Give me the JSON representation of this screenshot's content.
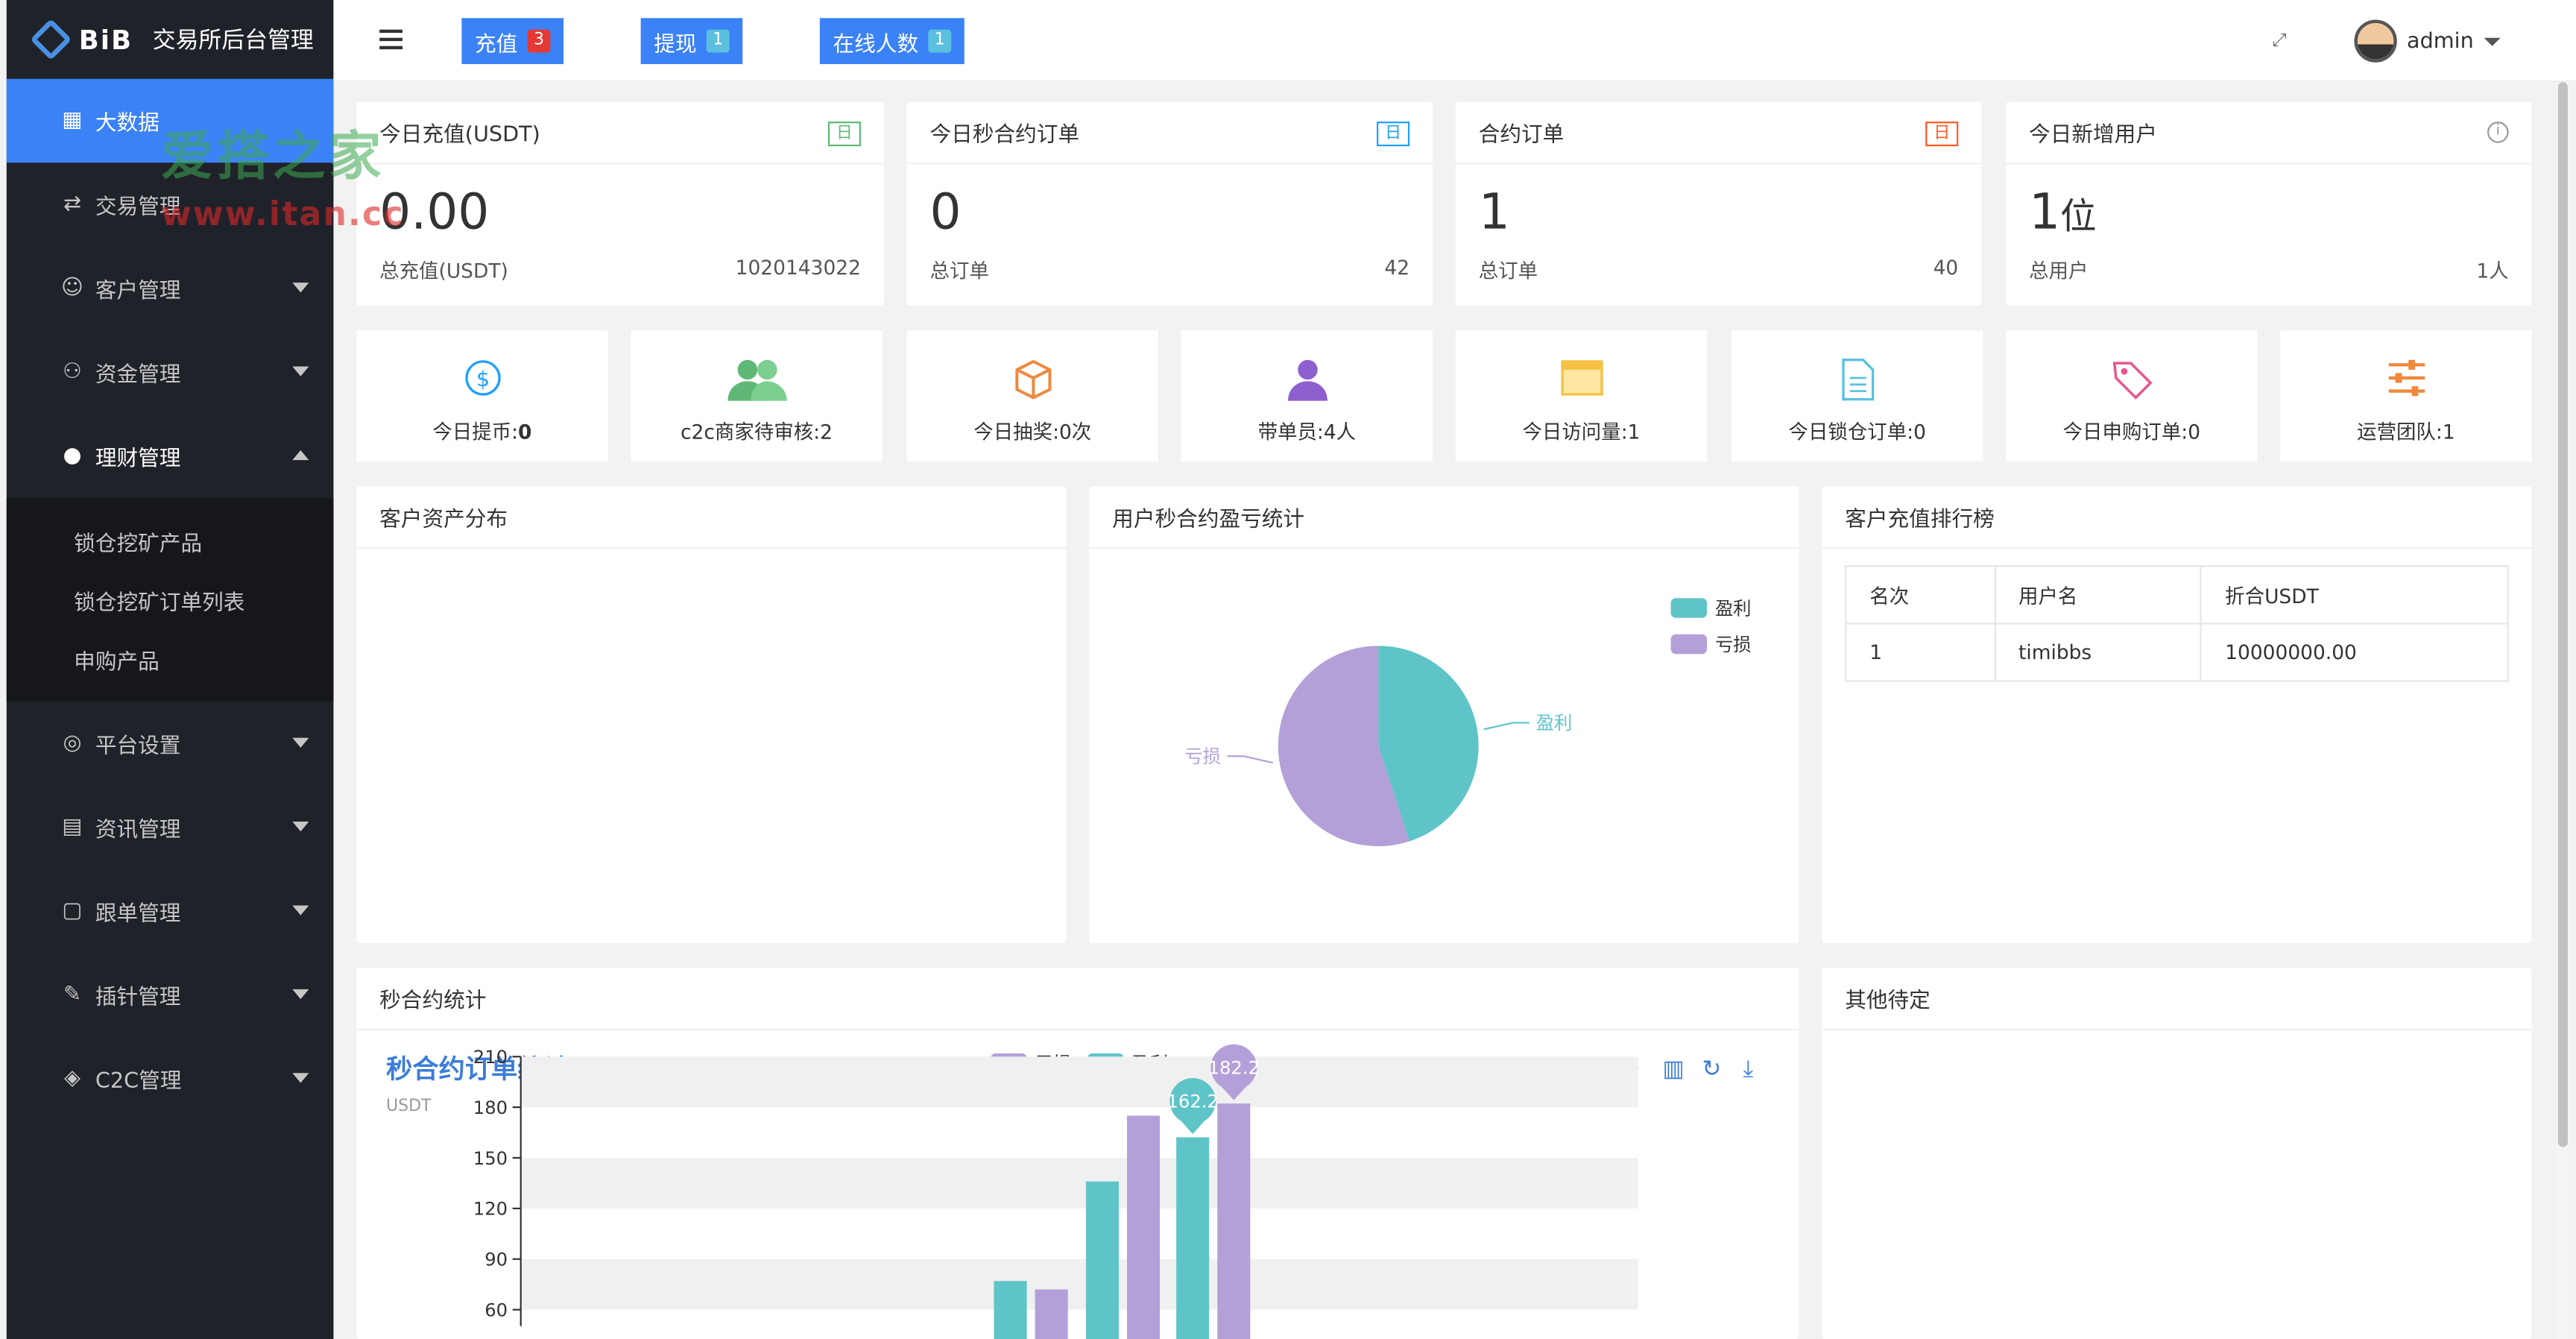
{
  "sidebar": {
    "brand": "BiB",
    "title": "交易所后台管理",
    "menu": [
      {
        "label": "大数据",
        "icon": "chart-icon"
      },
      {
        "label": "交易管理",
        "icon": "exchange-icon"
      },
      {
        "label": "客户管理",
        "icon": "users-icon"
      },
      {
        "label": "资金管理",
        "icon": "wallet-icon"
      },
      {
        "label": "理财管理",
        "icon": "piggy-bank-icon"
      },
      {
        "label": "平台设置",
        "icon": "settings-icon"
      },
      {
        "label": "资讯管理",
        "icon": "news-icon"
      },
      {
        "label": "跟单管理",
        "icon": "copy-order-icon"
      },
      {
        "label": "插针管理",
        "icon": "pin-icon"
      },
      {
        "label": "C2C管理",
        "icon": "c2c-icon"
      }
    ],
    "submenu": [
      "锁仓挖矿产品",
      "锁仓挖矿订单列表",
      "申购产品"
    ]
  },
  "header": {
    "buttons": [
      {
        "label": "充值",
        "badge": "3",
        "badge_color": "#e53935"
      },
      {
        "label": "提现",
        "badge": "1",
        "badge_color": "#5bc0de"
      },
      {
        "label": "在线人数",
        "badge": "1",
        "badge_color": "#5bc0de"
      }
    ],
    "user": "admin"
  },
  "watermark": {
    "line1": "爱搭之家",
    "line2": "www.itan.cc"
  },
  "stats": [
    {
      "title": "今日充值(USDT)",
      "tag": "日",
      "value": "0.00",
      "foot_label": "总充值(USDT)",
      "foot_value": "1020143022"
    },
    {
      "title": "今日秒合约订单",
      "tag": "日",
      "value": "0",
      "foot_label": "总订单",
      "foot_value": "42"
    },
    {
      "title": "合约订单",
      "tag": "日",
      "value": "1",
      "foot_label": "总订单",
      "foot_value": "40"
    },
    {
      "title": "今日新增用户",
      "tag": "i",
      "value": "1",
      "value_unit": "位",
      "foot_label": "总用户",
      "foot_value": "1人"
    }
  ],
  "mini_cards": [
    {
      "label": "今日提币:",
      "value": "0",
      "icon": "dollar-circle-icon",
      "color": "#1e9fff"
    },
    {
      "label": "c2c商家待审核:2",
      "icon": "group-icon",
      "color": "#5fb878"
    },
    {
      "label": "今日抽奖:0次",
      "icon": "cube-icon",
      "color": "#f0883e"
    },
    {
      "label": "带单员:4人",
      "icon": "person-icon",
      "color": "#8e5fcf"
    },
    {
      "label": "今日访问量:1",
      "icon": "window-icon",
      "color": "#f5c242"
    },
    {
      "label": "今日锁仓订单:0",
      "icon": "document-icon",
      "color": "#5bc0de"
    },
    {
      "label": "今日申购订单:0",
      "icon": "tag-icon",
      "color": "#e8578f"
    },
    {
      "label": "运营团队:1",
      "icon": "sliders-icon",
      "color": "#f0883e"
    }
  ],
  "panels": {
    "asset": "客户资产分布",
    "pnl": "用户秒合约盈亏统计",
    "rank": "客户充值排行榜",
    "sec": "秒合约统计",
    "other": "其他待定"
  },
  "rank_table": {
    "headers": [
      "名次",
      "用户名",
      "折合USDT"
    ],
    "rows": [
      [
        "1",
        "timibbs",
        "10000000.00"
      ]
    ]
  },
  "chart_data": [
    {
      "type": "pie",
      "labels": [
        "盈利",
        "亏损"
      ],
      "values": [
        45,
        55
      ],
      "colors": [
        "#5fc4c8",
        "#b4a0d8"
      ],
      "legend_position": "top-right"
    },
    {
      "type": "bar",
      "title": "秒合约订单统计",
      "ylabel": "USDT",
      "yticks": [
        60,
        90,
        120,
        150,
        180,
        210
      ],
      "ylim_visible": [
        60,
        210
      ],
      "series": [
        {
          "name": "亏损",
          "color": "#b4a0d8",
          "values": [
            72,
            175,
            182.2
          ]
        },
        {
          "name": "盈利",
          "color": "#5fc4c8",
          "values": [
            77,
            136,
            162.2
          ]
        }
      ],
      "pins": [
        {
          "series": "盈利",
          "label": "162.2"
        },
        {
          "series": "亏损",
          "label": "182.2"
        }
      ],
      "legend_position": "top-center"
    }
  ]
}
